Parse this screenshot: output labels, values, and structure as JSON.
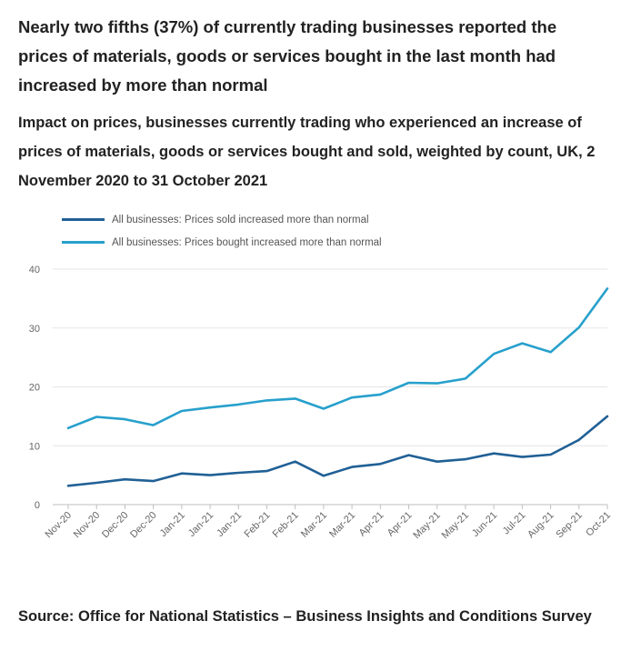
{
  "title": "Nearly two fifths (37%) of currently trading businesses reported the prices of materials, goods or services bought in the last month had increased by more than normal",
  "subtitle": "Impact on prices, businesses currently trading who experienced an increase of prices of materials, goods or services bought and sold, weighted by count, UK, 2 November 2020 to 31 October 2021",
  "source": "Source: Office for National Statistics – Business Insights and Conditions Survey",
  "chart_data": {
    "type": "line",
    "x": [
      "Nov-20",
      "Nov-20",
      "Dec-20",
      "Dec-20",
      "Jan-21",
      "Jan-21",
      "Jan-21",
      "Feb-21",
      "Feb-21",
      "Mar-21",
      "Mar-21",
      "Apr-21",
      "Apr-21",
      "May-21",
      "May-21",
      "Jun-21",
      "Jul-21",
      "Aug-21",
      "Sep-21",
      "Oct-21"
    ],
    "series": [
      {
        "name": "All businesses: Prices sold increased more than normal",
        "color": "#206095",
        "values": [
          3.2,
          3.7,
          4.3,
          4.0,
          5.3,
          5.0,
          5.4,
          5.7,
          7.3,
          4.9,
          6.4,
          6.9,
          8.4,
          7.3,
          7.7,
          8.7,
          8.1,
          8.5,
          11.0,
          15.0
        ]
      },
      {
        "name": "All businesses: Prices bought increased more than normal",
        "color": "#27a0cc",
        "values": [
          13.0,
          14.9,
          14.5,
          13.5,
          15.9,
          16.5,
          17.0,
          17.7,
          18.0,
          16.3,
          18.2,
          18.7,
          20.7,
          20.6,
          21.4,
          25.6,
          27.4,
          25.9,
          30.1,
          36.7
        ]
      }
    ],
    "ylim": [
      0,
      40
    ],
    "yticks": [
      0,
      10,
      20,
      30,
      40
    ],
    "xlabel": "",
    "ylabel": "",
    "grid": true,
    "legend": "top-left"
  }
}
